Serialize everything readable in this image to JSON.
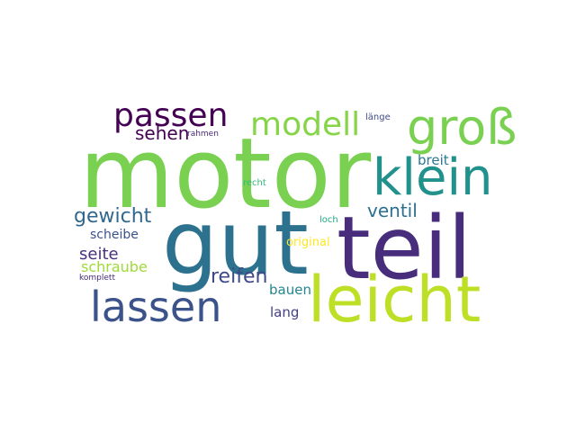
{
  "wordcloud": {
    "words": [
      {
        "text": "motor",
        "color": "#7ad151"
      },
      {
        "text": "gut",
        "color": "#2c728e"
      },
      {
        "text": "teil",
        "color": "#472d7b"
      },
      {
        "text": "leicht",
        "color": "#bddf26"
      },
      {
        "text": "klein",
        "color": "#21918c"
      },
      {
        "text": "lassen",
        "color": "#3b528b"
      },
      {
        "text": "groß",
        "color": "#7ad151"
      },
      {
        "text": "passen",
        "color": "#440154"
      },
      {
        "text": "modell",
        "color": "#86d549"
      },
      {
        "text": "gewicht",
        "color": "#31688e"
      },
      {
        "text": "reifen",
        "color": "#3e4989"
      },
      {
        "text": "ventil",
        "color": "#2d708e"
      },
      {
        "text": "sehen",
        "color": "#440154"
      },
      {
        "text": "seite",
        "color": "#46327e"
      },
      {
        "text": "schraube",
        "color": "#a0da39"
      },
      {
        "text": "bauen",
        "color": "#25858e"
      },
      {
        "text": "lang",
        "color": "#424086"
      },
      {
        "text": "breit",
        "color": "#2a788e"
      },
      {
        "text": "scheibe",
        "color": "#3b528b"
      },
      {
        "text": "original",
        "color": "#fde725"
      },
      {
        "text": "loch",
        "color": "#22a884"
      },
      {
        "text": "recht",
        "color": "#35b779"
      },
      {
        "text": "länge",
        "color": "#3e4a89"
      },
      {
        "text": "rahmen",
        "color": "#482878"
      },
      {
        "text": "komplett",
        "color": "#472c7a"
      }
    ]
  }
}
